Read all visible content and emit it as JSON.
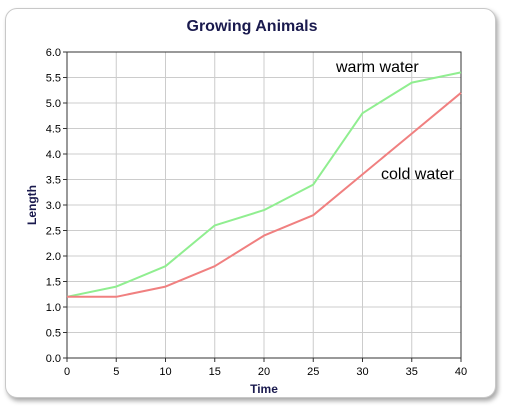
{
  "chart_data": {
    "type": "line",
    "title": "Growing Animals",
    "xlabel": "Time",
    "ylabel": "Length",
    "xlim": [
      0,
      40
    ],
    "ylim": [
      0,
      6.0
    ],
    "xticks": [
      0,
      5,
      10,
      15,
      20,
      25,
      30,
      35,
      40
    ],
    "yticks": [
      0.0,
      0.5,
      1.0,
      1.5,
      2.0,
      2.5,
      3.0,
      3.5,
      4.0,
      4.5,
      5.0,
      5.5,
      6.0
    ],
    "grid": true,
    "x": [
      0,
      5,
      10,
      15,
      20,
      25,
      30,
      35,
      40
    ],
    "series": [
      {
        "name": "warm water",
        "color": "#90ee90",
        "values": [
          1.2,
          1.4,
          1.8,
          2.6,
          2.9,
          3.4,
          4.8,
          5.4,
          5.6
        ]
      },
      {
        "name": "cold water",
        "color": "#f08080",
        "values": [
          1.2,
          1.2,
          1.4,
          1.8,
          2.4,
          2.8,
          3.6,
          4.4,
          5.2
        ]
      }
    ]
  }
}
